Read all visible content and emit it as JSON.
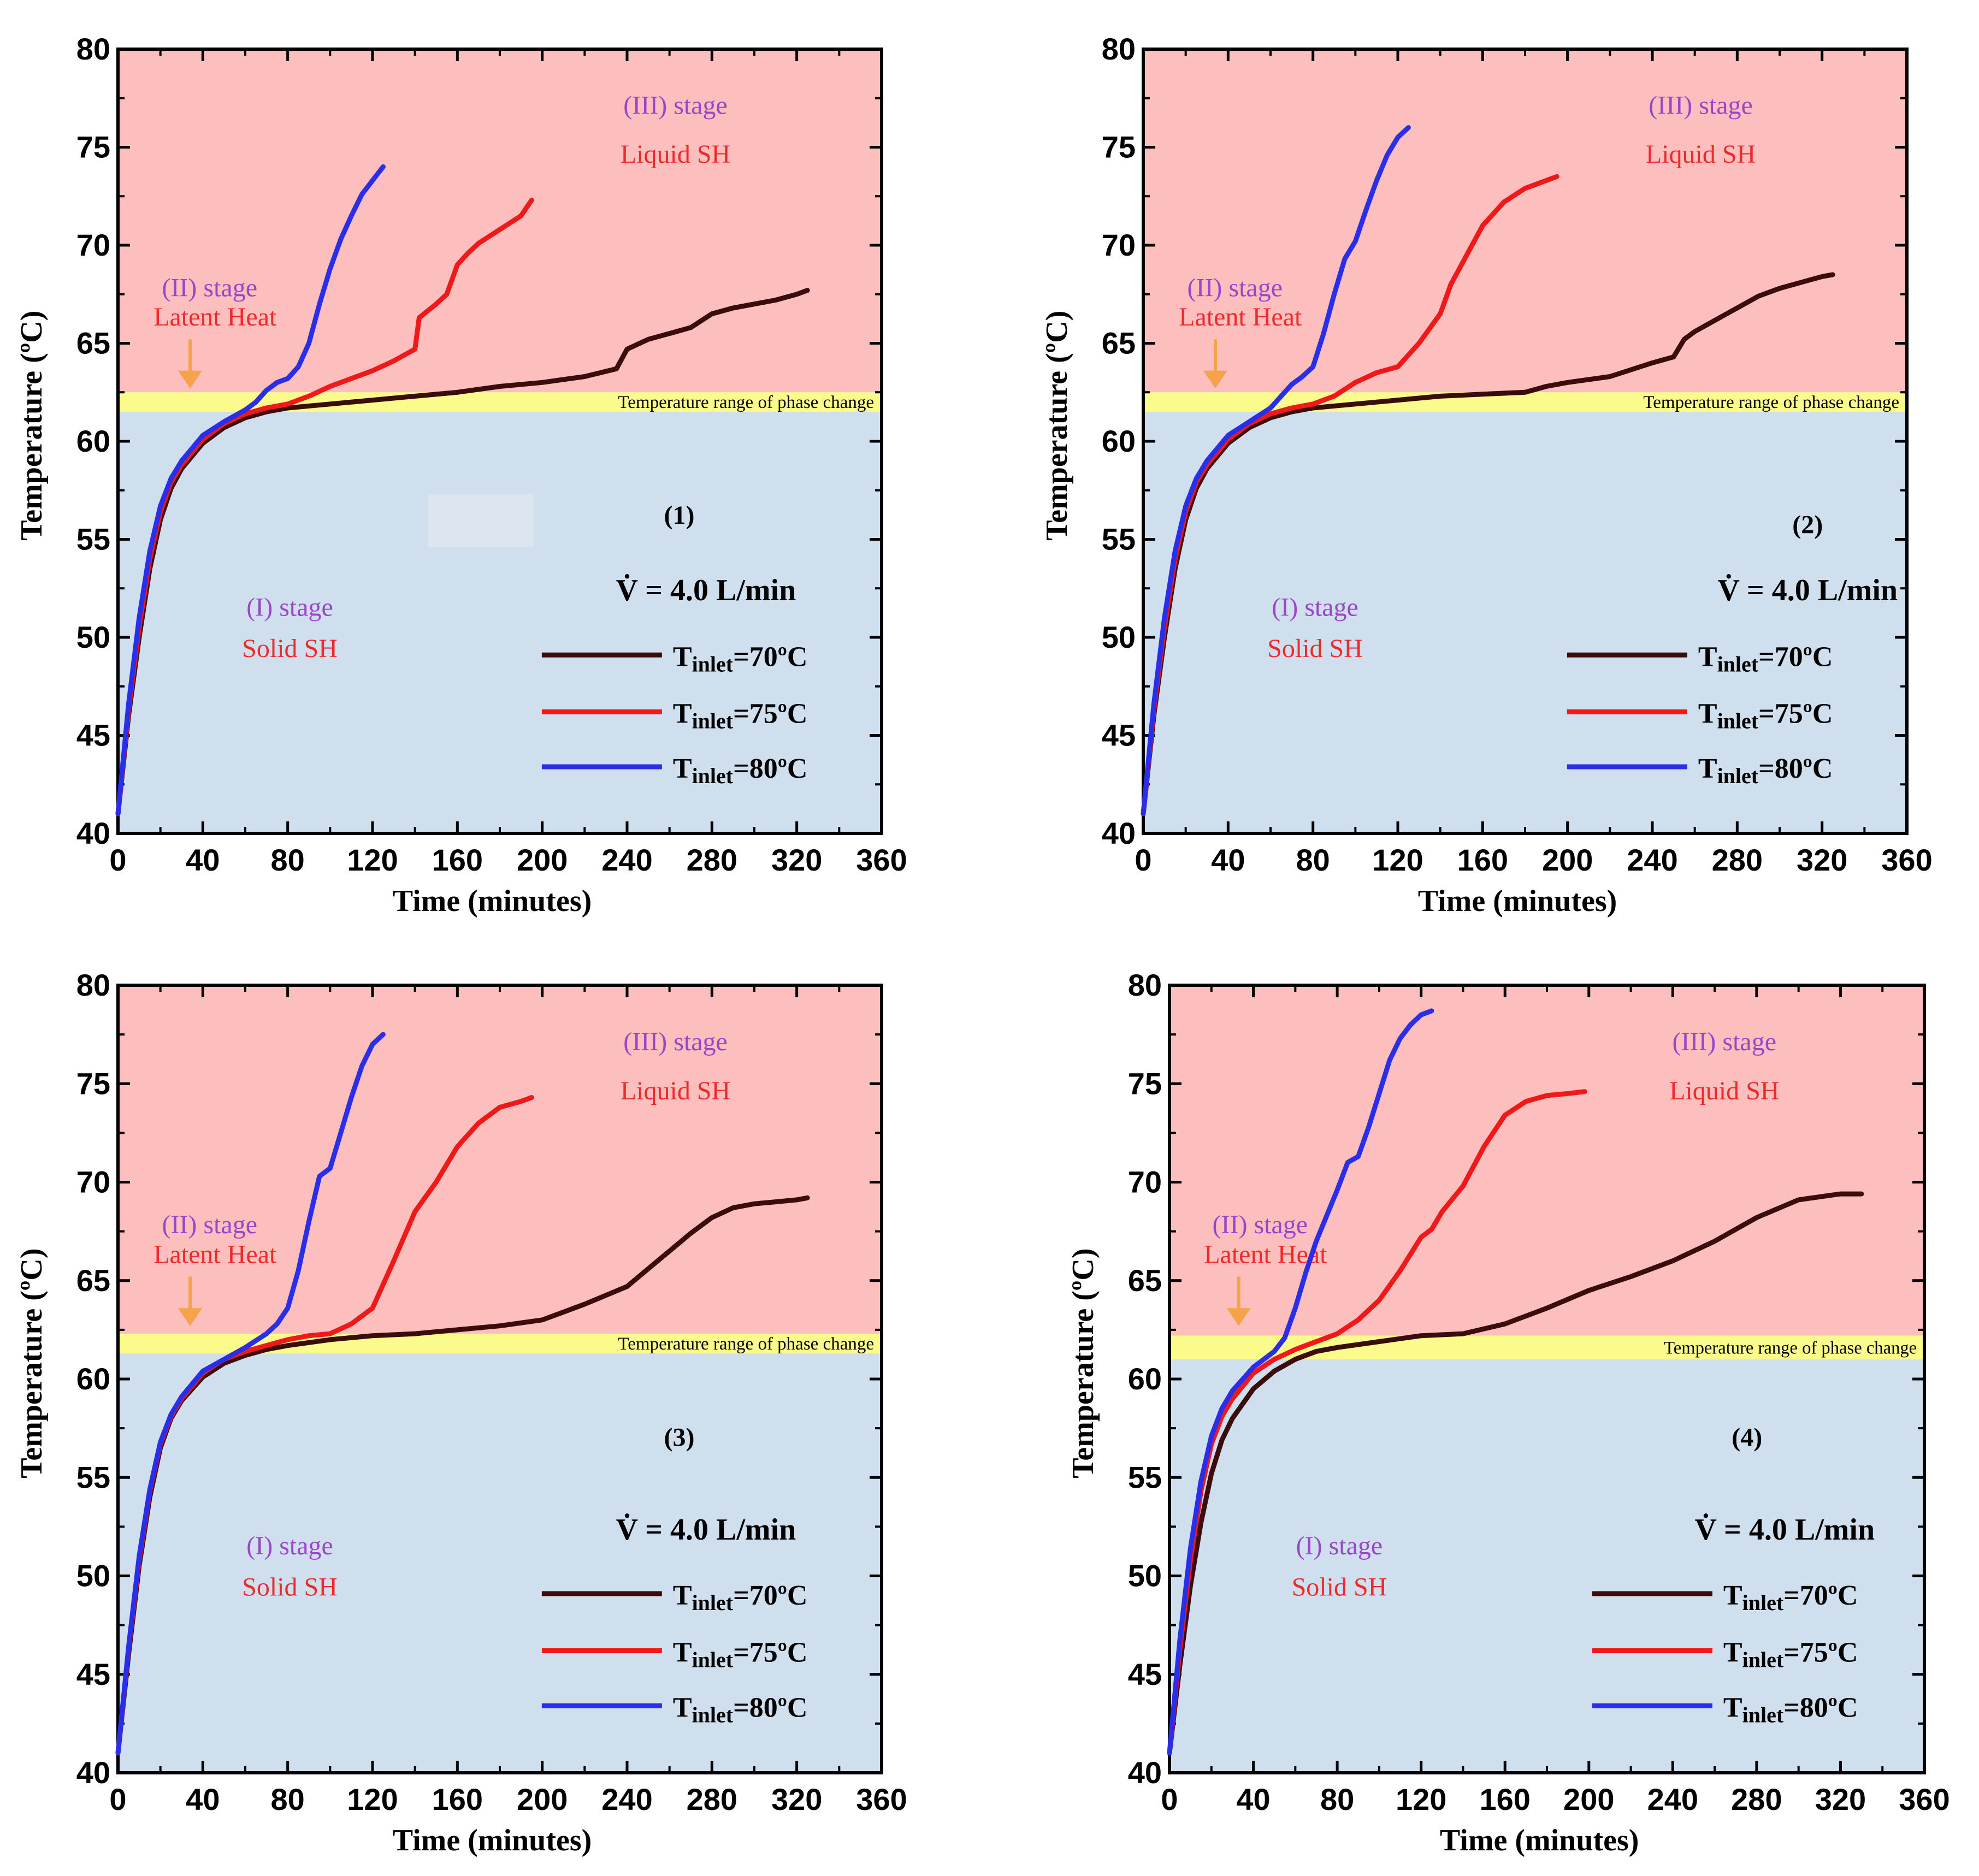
{
  "figure": {
    "colors": {
      "solid_region": "#cfdfee",
      "liquid_region": "#fdbebe",
      "phase_band": "#fbfb8c",
      "arrow": "#f6a24a",
      "stage_text": "#9b46c8",
      "phase_text": "#ef2a2a",
      "axis": "#000000"
    }
  },
  "chart_data": [
    {
      "type": "line",
      "panel_label": "(1)",
      "xlabel": "Time (minutes)",
      "ylabel": "Temperature (ºC)",
      "xlim": [
        0,
        360
      ],
      "ylim": [
        40,
        80
      ],
      "xticks": [
        "0",
        "40",
        "80",
        "120",
        "160",
        "200",
        "240",
        "280",
        "320",
        "360"
      ],
      "yticks": [
        "40",
        "45",
        "50",
        "55",
        "60",
        "65",
        "70",
        "75",
        "80"
      ],
      "phase_band": [
        61.5,
        62.5
      ],
      "regions": {
        "stage1": "(I) stage",
        "stage1_sub": "Solid SH",
        "stage2": "(II) stage",
        "stage2_sub": "Latent Heat",
        "stage3": "(III) stage",
        "stage3_sub": "Liquid SH",
        "band_label": "Temperature range of phase change"
      },
      "flow_label": "V̇ = 4.0 L/min",
      "series": [
        {
          "name": "T_inlet=70ºC",
          "prefix": "T",
          "subscript": "inlet",
          "suffix": "=70ºC",
          "color": "#3b0c0c",
          "x": [
            0,
            5,
            10,
            15,
            20,
            25,
            30,
            40,
            50,
            60,
            70,
            80,
            100,
            120,
            140,
            160,
            180,
            200,
            220,
            235,
            240,
            250,
            260,
            270,
            280,
            290,
            300,
            310,
            320,
            325
          ],
          "y": [
            41,
            46,
            50,
            53.5,
            56,
            57.6,
            58.6,
            59.9,
            60.7,
            61.2,
            61.5,
            61.7,
            61.9,
            62.1,
            62.3,
            62.5,
            62.8,
            63.0,
            63.3,
            63.7,
            64.7,
            65.2,
            65.5,
            65.8,
            66.5,
            66.8,
            67.0,
            67.2,
            67.5,
            67.7
          ]
        },
        {
          "name": "T_inlet=75ºC",
          "prefix": "T",
          "subscript": "inlet",
          "suffix": "=75ºC",
          "color": "#f01818",
          "x": [
            0,
            5,
            10,
            15,
            20,
            25,
            30,
            40,
            50,
            60,
            70,
            80,
            90,
            100,
            110,
            120,
            130,
            140,
            142,
            150,
            155,
            160,
            165,
            170,
            180,
            190,
            195
          ],
          "y": [
            41,
            46.3,
            50.5,
            54,
            56.4,
            57.9,
            58.8,
            60.1,
            60.9,
            61.4,
            61.7,
            61.9,
            62.3,
            62.8,
            63.2,
            63.6,
            64.1,
            64.7,
            66.3,
            67.0,
            67.5,
            69.0,
            69.6,
            70.1,
            70.8,
            71.5,
            72.3
          ]
        },
        {
          "name": "T_inlet=80ºC",
          "prefix": "T",
          "subscript": "inlet",
          "suffix": "=80ºC",
          "color": "#2b2ee8",
          "x": [
            0,
            5,
            10,
            15,
            20,
            25,
            30,
            40,
            50,
            60,
            65,
            70,
            75,
            80,
            85,
            90,
            95,
            100,
            105,
            110,
            115,
            120,
            125
          ],
          "y": [
            41,
            46.6,
            51,
            54.4,
            56.7,
            58.1,
            59.0,
            60.3,
            61.0,
            61.6,
            62.0,
            62.6,
            63.0,
            63.2,
            63.8,
            65.0,
            67.0,
            68.8,
            70.3,
            71.5,
            72.6,
            73.3,
            74.0
          ]
        }
      ]
    },
    {
      "type": "line",
      "panel_label": "(2)",
      "xlabel": "Time (minutes)",
      "ylabel": "Temperature (ºC)",
      "xlim": [
        0,
        360
      ],
      "ylim": [
        40,
        80
      ],
      "xticks": [
        "0",
        "40",
        "80",
        "120",
        "160",
        "200",
        "240",
        "280",
        "320",
        "360"
      ],
      "yticks": [
        "40",
        "45",
        "50",
        "55",
        "60",
        "65",
        "70",
        "75",
        "80"
      ],
      "phase_band": [
        61.5,
        62.5
      ],
      "regions": {
        "stage1": "(I) stage",
        "stage1_sub": "Solid SH",
        "stage2": "(II) stage",
        "stage2_sub": "Latent Heat",
        "stage3": "(III) stage",
        "stage3_sub": "Liquid SH",
        "band_label": "Temperature range of phase change"
      },
      "flow_label": "V̇ = 4.0 L/min",
      "series": [
        {
          "name": "T_inlet=70ºC",
          "prefix": "T",
          "subscript": "inlet",
          "suffix": "=70ºC",
          "color": "#3b0c0c",
          "x": [
            0,
            5,
            10,
            15,
            20,
            25,
            30,
            40,
            50,
            60,
            70,
            80,
            100,
            120,
            140,
            160,
            180,
            190,
            200,
            220,
            240,
            250,
            255,
            260,
            270,
            280,
            290,
            300,
            310,
            320,
            325
          ],
          "y": [
            41,
            46,
            50,
            53.5,
            56,
            57.6,
            58.6,
            59.9,
            60.7,
            61.2,
            61.5,
            61.7,
            61.9,
            62.1,
            62.3,
            62.4,
            62.5,
            62.8,
            63.0,
            63.3,
            64.0,
            64.3,
            65.2,
            65.6,
            66.2,
            66.8,
            67.4,
            67.8,
            68.1,
            68.4,
            68.5
          ]
        },
        {
          "name": "T_inlet=75ºC",
          "prefix": "T",
          "subscript": "inlet",
          "suffix": "=75ºC",
          "color": "#f01818",
          "x": [
            0,
            5,
            10,
            15,
            20,
            25,
            30,
            40,
            50,
            60,
            70,
            80,
            90,
            100,
            110,
            120,
            130,
            140,
            145,
            150,
            160,
            170,
            180,
            190,
            195
          ],
          "y": [
            41,
            46.3,
            50.5,
            54,
            56.4,
            57.9,
            58.8,
            60.1,
            60.9,
            61.4,
            61.7,
            61.9,
            62.3,
            63.0,
            63.5,
            63.8,
            65.0,
            66.5,
            68.0,
            69.0,
            71.0,
            72.2,
            72.9,
            73.3,
            73.5
          ]
        },
        {
          "name": "T_inlet=80ºC",
          "prefix": "T",
          "subscript": "inlet",
          "suffix": "=80ºC",
          "color": "#2b2ee8",
          "x": [
            0,
            5,
            10,
            15,
            20,
            25,
            30,
            40,
            50,
            60,
            65,
            70,
            75,
            80,
            85,
            90,
            95,
            100,
            105,
            110,
            115,
            120,
            125
          ],
          "y": [
            41,
            46.6,
            51,
            54.4,
            56.7,
            58.1,
            59.0,
            60.3,
            61.0,
            61.7,
            62.3,
            62.9,
            63.3,
            63.8,
            65.5,
            67.5,
            69.3,
            70.2,
            71.8,
            73.3,
            74.6,
            75.5,
            76.0
          ]
        }
      ]
    },
    {
      "type": "line",
      "panel_label": "(3)",
      "xlabel": "Time (minutes)",
      "ylabel": "Temperature (ºC)",
      "xlim": [
        0,
        360
      ],
      "ylim": [
        40,
        80
      ],
      "xticks": [
        "0",
        "40",
        "80",
        "120",
        "160",
        "200",
        "240",
        "280",
        "320",
        "360"
      ],
      "yticks": [
        "40",
        "45",
        "50",
        "55",
        "60",
        "65",
        "70",
        "75",
        "80"
      ],
      "phase_band": [
        61.3,
        62.3
      ],
      "regions": {
        "stage1": "(I) stage",
        "stage1_sub": "Solid SH",
        "stage2": "(II) stage",
        "stage2_sub": "Latent Heat",
        "stage3": "(III) stage",
        "stage3_sub": "Liquid SH",
        "band_label": "Temperature range of phase change"
      },
      "flow_label": "V̇ = 4.0 L/min",
      "series": [
        {
          "name": "T_inlet=70ºC",
          "prefix": "T",
          "subscript": "inlet",
          "suffix": "=70ºC",
          "color": "#3b0c0c",
          "x": [
            0,
            5,
            10,
            15,
            20,
            25,
            30,
            40,
            50,
            60,
            70,
            80,
            100,
            120,
            140,
            160,
            180,
            200,
            220,
            240,
            250,
            260,
            270,
            280,
            290,
            300,
            310,
            320,
            325
          ],
          "y": [
            41,
            46,
            50.5,
            54,
            56.5,
            58,
            58.9,
            60.1,
            60.8,
            61.2,
            61.5,
            61.7,
            62.0,
            62.2,
            62.3,
            62.5,
            62.7,
            63.0,
            63.8,
            64.7,
            65.6,
            66.5,
            67.4,
            68.2,
            68.7,
            68.9,
            69.0,
            69.1,
            69.2
          ]
        },
        {
          "name": "T_inlet=75ºC",
          "prefix": "T",
          "subscript": "inlet",
          "suffix": "=75ºC",
          "color": "#f01818",
          "x": [
            0,
            5,
            10,
            15,
            20,
            25,
            30,
            40,
            50,
            60,
            70,
            80,
            90,
            100,
            110,
            120,
            130,
            140,
            150,
            160,
            170,
            180,
            190,
            195
          ],
          "y": [
            41,
            46.3,
            50.8,
            54.3,
            56.7,
            58.1,
            59.0,
            60.3,
            61.0,
            61.4,
            61.7,
            62.0,
            62.2,
            62.3,
            62.8,
            63.6,
            66.0,
            68.5,
            70.0,
            71.8,
            73.0,
            73.8,
            74.1,
            74.3
          ]
        },
        {
          "name": "T_inlet=80ºC",
          "prefix": "T",
          "subscript": "inlet",
          "suffix": "=80ºC",
          "color": "#2b2ee8",
          "x": [
            0,
            5,
            10,
            15,
            20,
            25,
            30,
            40,
            50,
            60,
            70,
            75,
            80,
            85,
            90,
            95,
            100,
            105,
            110,
            115,
            120,
            125
          ],
          "y": [
            41,
            46.4,
            51,
            54.4,
            56.8,
            58.2,
            59.1,
            60.4,
            61.0,
            61.6,
            62.3,
            62.8,
            63.6,
            65.5,
            68.0,
            70.3,
            70.7,
            72.5,
            74.3,
            75.9,
            77.0,
            77.5
          ]
        }
      ]
    },
    {
      "type": "line",
      "panel_label": "(4)",
      "xlabel": "Time (minutes)",
      "ylabel": "Temperature (ºC)",
      "xlim": [
        0,
        360
      ],
      "ylim": [
        40,
        80
      ],
      "xticks": [
        "0",
        "40",
        "80",
        "120",
        "160",
        "200",
        "240",
        "280",
        "320",
        "360"
      ],
      "yticks": [
        "40",
        "45",
        "50",
        "55",
        "60",
        "65",
        "70",
        "75",
        "80"
      ],
      "phase_band": [
        61.0,
        62.2
      ],
      "regions": {
        "stage1": "(I) stage",
        "stage1_sub": "Solid SH",
        "stage2": "(II) stage",
        "stage2_sub": "Latent Heat",
        "stage3": "(III) stage",
        "stage3_sub": "Liquid SH",
        "band_label": "Temperature range of phase change"
      },
      "flow_label": "V̇ = 4.0 L/min",
      "series": [
        {
          "name": "T_inlet=70ºC",
          "prefix": "T",
          "subscript": "inlet",
          "suffix": "=70ºC",
          "color": "#3b0c0c",
          "x": [
            0,
            5,
            10,
            15,
            20,
            25,
            30,
            40,
            50,
            60,
            70,
            80,
            100,
            120,
            140,
            160,
            180,
            200,
            220,
            240,
            260,
            280,
            300,
            320,
            330
          ],
          "y": [
            41,
            45.5,
            49.5,
            52.7,
            55.2,
            56.9,
            58.0,
            59.5,
            60.4,
            61.0,
            61.4,
            61.6,
            61.9,
            62.2,
            62.3,
            62.8,
            63.6,
            64.5,
            65.2,
            66.0,
            67.0,
            68.2,
            69.1,
            69.4,
            69.4
          ]
        },
        {
          "name": "T_inlet=75ºC",
          "prefix": "T",
          "subscript": "inlet",
          "suffix": "=75ºC",
          "color": "#f01818",
          "x": [
            0,
            5,
            10,
            15,
            20,
            25,
            30,
            40,
            50,
            60,
            70,
            80,
            90,
            100,
            110,
            120,
            125,
            130,
            140,
            150,
            160,
            170,
            180,
            190,
            198
          ],
          "y": [
            41,
            46.3,
            50.8,
            54.3,
            56.7,
            58.1,
            59.0,
            60.3,
            61.0,
            61.5,
            61.9,
            62.3,
            63.0,
            64.0,
            65.5,
            67.2,
            67.6,
            68.5,
            69.8,
            71.8,
            73.4,
            74.1,
            74.4,
            74.5,
            74.6
          ]
        },
        {
          "name": "T_inlet=80ºC",
          "prefix": "T",
          "subscript": "inlet",
          "suffix": "=80ºC",
          "color": "#2b2ee8",
          "x": [
            0,
            5,
            10,
            15,
            20,
            25,
            30,
            40,
            50,
            55,
            60,
            65,
            70,
            75,
            80,
            85,
            90,
            95,
            100,
            105,
            110,
            115,
            120,
            125
          ],
          "y": [
            41,
            46.8,
            51.4,
            54.8,
            57.1,
            58.5,
            59.4,
            60.6,
            61.4,
            62.1,
            63.6,
            65.4,
            67.0,
            68.3,
            69.6,
            71.0,
            71.3,
            72.8,
            74.5,
            76.2,
            77.3,
            78.0,
            78.5,
            78.7
          ]
        }
      ]
    }
  ]
}
